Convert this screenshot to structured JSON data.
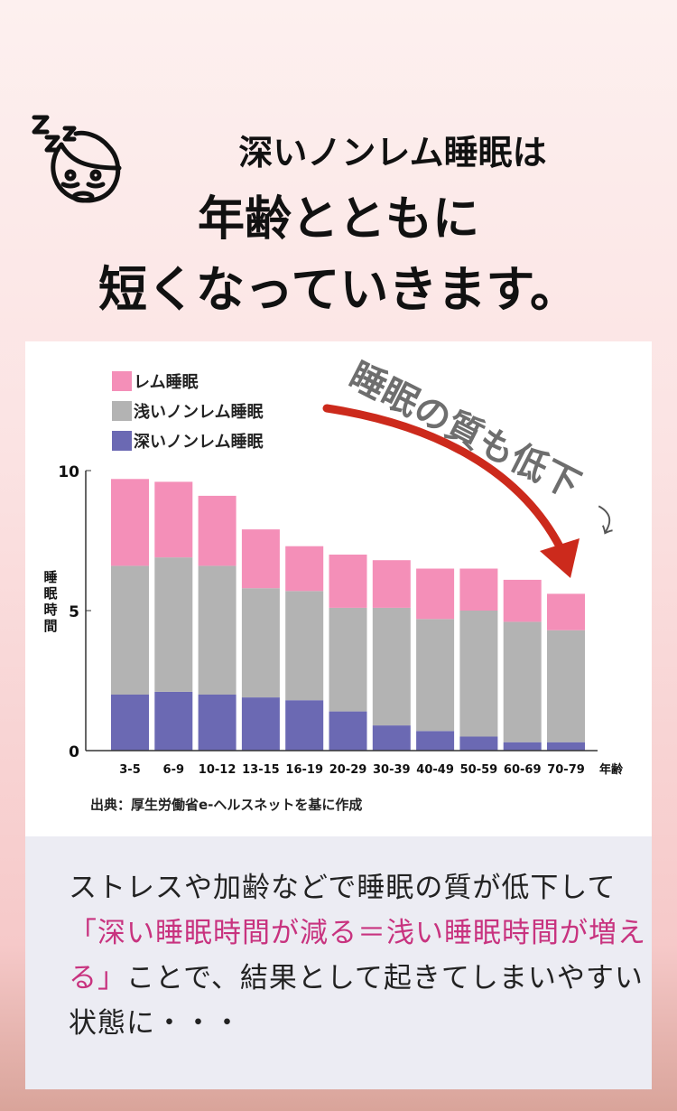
{
  "header": {
    "line1": "深いノンレム睡眠は",
    "line2": "年齢とともに",
    "line3": "短くなっていきます。",
    "icon": "sleeping-face-icon"
  },
  "chart_data": {
    "type": "bar",
    "stacked": true,
    "categories": [
      "3-5",
      "6-9",
      "10-12",
      "13-15",
      "16-19",
      "20-29",
      "30-39",
      "40-49",
      "50-59",
      "60-69",
      "70-79"
    ],
    "series": [
      {
        "name": "深いノンレム睡眠",
        "color": "#6b69b3",
        "values": [
          2.0,
          2.1,
          2.0,
          1.9,
          1.8,
          1.4,
          0.9,
          0.7,
          0.5,
          0.3,
          0.3
        ]
      },
      {
        "name": "浅いノンレム睡眠",
        "color": "#b3b3b3",
        "values": [
          4.6,
          4.8,
          4.6,
          3.9,
          3.9,
          3.7,
          4.2,
          4.0,
          4.5,
          4.3,
          4.0
        ]
      },
      {
        "name": "レム睡眠",
        "color": "#f48fb8",
        "values": [
          3.1,
          2.7,
          2.5,
          2.1,
          1.6,
          1.9,
          1.7,
          1.8,
          1.5,
          1.5,
          1.3
        ]
      }
    ],
    "legend_order": [
      "レム睡眠",
      "浅いノンレム睡眠",
      "深いノンレム睡眠"
    ],
    "legend_placement": "top-left",
    "ylabel": "睡眠時間",
    "xlabel": "年齢",
    "ylim": [
      0,
      10
    ],
    "yticks": [
      "0",
      "5",
      "10"
    ],
    "annotation": "睡眠の質も低下",
    "annotation_arrow": "⤵",
    "source": "出典：厚生労働省e-ヘルスネットを基に作成"
  },
  "body": {
    "part1": "ストレスや加齢などで睡眠の質が低下して",
    "highlight": "「深い睡眠時間が減る＝浅い睡眠時間が増える」",
    "part2": "ことで、結果として起きてしまいやすい状態に・・・"
  }
}
